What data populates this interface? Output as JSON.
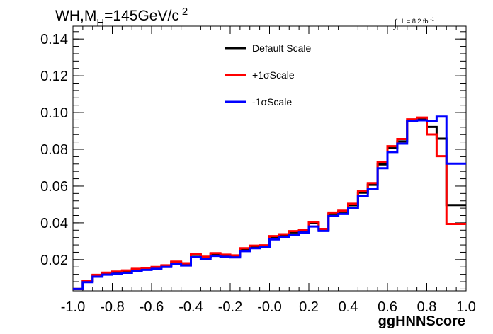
{
  "chart_data": {
    "type": "line",
    "title": {
      "prefix": "WH,M",
      "sub": "H",
      "mid": "=145GeV/c",
      "sup": "2"
    },
    "luminosity": {
      "integral": "∫",
      "text": "L = 8.2 fb",
      "sup": "-1"
    },
    "xlabel": "ggHNNScore",
    "ylabel": "",
    "xlim": [
      -1.0,
      1.0
    ],
    "ylim": [
      0.003,
      0.147
    ],
    "x_ticks": [
      "-1.0",
      "-0.8",
      "-0.6",
      "-0.4",
      "-0.2",
      "-0.0",
      "0.2",
      "0.4",
      "0.6",
      "0.8",
      "1.0"
    ],
    "y_ticks": [
      "0.02",
      "0.04",
      "0.06",
      "0.08",
      "0.10",
      "0.12",
      "0.14"
    ],
    "bin_edges": [
      -1.0,
      -0.95,
      -0.9,
      -0.85,
      -0.8,
      -0.75,
      -0.7,
      -0.65,
      -0.6,
      -0.55,
      -0.5,
      -0.45,
      -0.4,
      -0.35,
      -0.3,
      -0.25,
      -0.2,
      -0.15,
      -0.1,
      -0.05,
      0.0,
      0.05,
      0.1,
      0.15,
      0.2,
      0.25,
      0.3,
      0.35,
      0.4,
      0.45,
      0.5,
      0.55,
      0.6,
      0.65,
      0.7,
      0.75,
      0.8,
      0.85,
      0.9,
      0.95,
      1.0
    ],
    "legend_position": "top-center",
    "series": [
      {
        "name": "Default Scale",
        "color": "#000000",
        "values": [
          0.004,
          0.0085,
          0.0115,
          0.0127,
          0.0133,
          0.0138,
          0.0148,
          0.0153,
          0.0157,
          0.0166,
          0.0187,
          0.0178,
          0.0226,
          0.0213,
          0.0231,
          0.0224,
          0.022,
          0.0258,
          0.0272,
          0.0275,
          0.0322,
          0.0333,
          0.0348,
          0.0357,
          0.0398,
          0.0363,
          0.0448,
          0.046,
          0.0496,
          0.0564,
          0.0607,
          0.0718,
          0.0806,
          0.0843,
          0.0953,
          0.0965,
          0.0922,
          0.0858,
          0.0497,
          0.0497
        ]
      },
      {
        "name": "+1σScale",
        "color": "#ff0000",
        "values": [
          0.004,
          0.0086,
          0.0117,
          0.0129,
          0.0135,
          0.0141,
          0.015,
          0.0154,
          0.016,
          0.0169,
          0.0189,
          0.018,
          0.023,
          0.0216,
          0.0235,
          0.0227,
          0.0223,
          0.0262,
          0.0276,
          0.0278,
          0.0328,
          0.0338,
          0.0355,
          0.0362,
          0.0405,
          0.0367,
          0.0456,
          0.0466,
          0.0504,
          0.0574,
          0.0616,
          0.0731,
          0.0817,
          0.0856,
          0.0963,
          0.0973,
          0.0881,
          0.0763,
          0.0394,
          0.0394
        ]
      },
      {
        "name": "-1σScale",
        "color": "#0000ff",
        "values": [
          0.004,
          0.0077,
          0.0107,
          0.0118,
          0.0123,
          0.0128,
          0.0138,
          0.0144,
          0.015,
          0.016,
          0.0175,
          0.0168,
          0.0213,
          0.0204,
          0.022,
          0.0215,
          0.0212,
          0.0246,
          0.0262,
          0.0268,
          0.031,
          0.0322,
          0.0335,
          0.0347,
          0.038,
          0.0356,
          0.0436,
          0.0448,
          0.0482,
          0.0544,
          0.0584,
          0.0697,
          0.0785,
          0.0831,
          0.0953,
          0.0958,
          0.0955,
          0.0978,
          0.0722,
          0.0722
        ]
      }
    ]
  }
}
